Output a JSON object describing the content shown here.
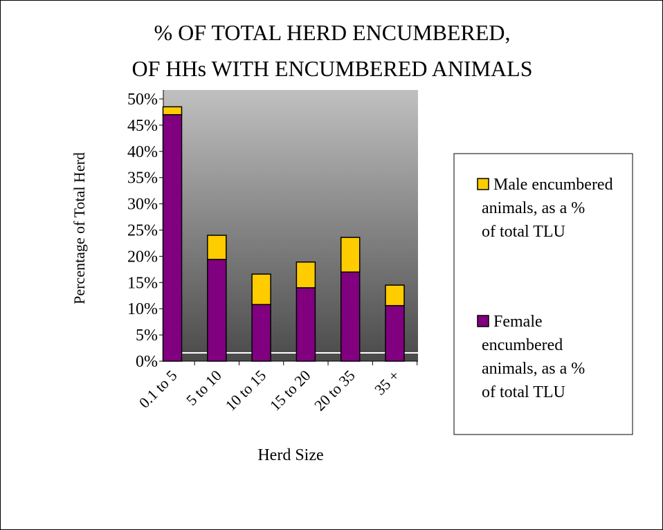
{
  "chart_data": {
    "type": "stacked_bar",
    "title": [
      "% OF TOTAL HERD ENCUMBERED,",
      "OF HHs WITH ENCUMBERED ANIMALS"
    ],
    "x_label": "Herd Size",
    "y_label": "Percentage of Total Herd",
    "categories": [
      "0.1 to 5",
      "5 to 10",
      "10 to 15",
      "15 to 20",
      "20 to 35",
      "35 +"
    ],
    "series": [
      {
        "name": "Female encumbered animals, as a % of total TLU",
        "color": "#800080",
        "values": [
          47,
          19.4,
          10.8,
          14,
          17,
          10.6
        ]
      },
      {
        "name": "Male encumbered animals, as a % of total TLU",
        "color": "#ffcc00",
        "values": [
          1.5,
          4.6,
          5.8,
          4.9,
          6.6,
          3.9
        ]
      }
    ],
    "ylim": [
      0,
      50
    ],
    "yticks": [
      {
        "value": 0,
        "label": "0%"
      },
      {
        "value": 5,
        "label": "5%"
      },
      {
        "value": 10,
        "label": "10%"
      },
      {
        "value": 15,
        "label": "15%"
      },
      {
        "value": 20,
        "label": "20%"
      },
      {
        "value": 25,
        "label": "25%"
      },
      {
        "value": 30,
        "label": "30%"
      },
      {
        "value": 35,
        "label": "35%"
      },
      {
        "value": 40,
        "label": "40%"
      },
      {
        "value": 45,
        "label": "45%"
      },
      {
        "value": 50,
        "label": "50%"
      }
    ],
    "legend": "right"
  }
}
